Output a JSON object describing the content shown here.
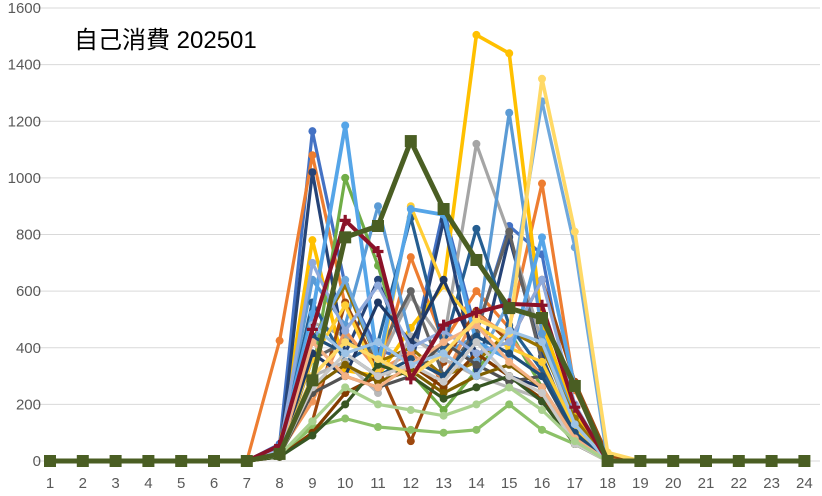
{
  "window": {
    "background": "#FFFFFF"
  },
  "chart_data": {
    "type": "line",
    "title": "自己消費 202501",
    "xlabel": "",
    "ylabel": "",
    "x": [
      1,
      2,
      3,
      4,
      5,
      6,
      7,
      8,
      9,
      10,
      11,
      12,
      13,
      14,
      15,
      16,
      17,
      18,
      19,
      20,
      21,
      22,
      23,
      24
    ],
    "y_ticks": [
      0,
      200,
      400,
      600,
      800,
      1000,
      1200,
      1400,
      1600
    ],
    "ylim": [
      0,
      1600
    ],
    "grid": "horizontal-only",
    "legend": "none",
    "grid_color": "#D9D9D9",
    "axis_label_color": "#595959",
    "title_color": "#000000",
    "series": [
      {
        "id": "s01",
        "color": "#4472C4",
        "marker": "circle",
        "width": 3.2,
        "values": [
          0,
          0,
          0,
          0,
          0,
          0,
          0,
          60,
          1165,
          620,
          390,
          360,
          890,
          450,
          830,
          730,
          120,
          0,
          0,
          0,
          0,
          0,
          0,
          0
        ]
      },
      {
        "id": "s02",
        "color": "#ED7D31",
        "marker": "circle",
        "width": 3.2,
        "values": [
          0,
          0,
          0,
          0,
          0,
          0,
          0,
          425,
          1080,
          550,
          300,
          720,
          420,
          600,
          470,
          980,
          250,
          15,
          0,
          0,
          0,
          0,
          0,
          0
        ]
      },
      {
        "id": "s03",
        "color": "#A5A5A5",
        "marker": "circle",
        "width": 3.2,
        "values": [
          0,
          0,
          0,
          0,
          0,
          0,
          0,
          30,
          490,
          440,
          340,
          580,
          420,
          1120,
          800,
          420,
          110,
          0,
          0,
          0,
          0,
          0,
          0,
          0
        ]
      },
      {
        "id": "s04",
        "color": "#FFC000",
        "marker": "circle",
        "width": 3.6,
        "values": [
          0,
          0,
          0,
          0,
          0,
          0,
          0,
          45,
          780,
          320,
          300,
          470,
          620,
          1505,
          1440,
          490,
          160,
          0,
          0,
          0,
          0,
          0,
          0,
          0
        ]
      },
      {
        "id": "s05",
        "color": "#5B9BD5",
        "marker": "circle",
        "width": 3.2,
        "values": [
          0,
          0,
          0,
          0,
          0,
          0,
          0,
          35,
          640,
          480,
          900,
          430,
          380,
          440,
          1230,
          450,
          150,
          0,
          0,
          0,
          0,
          0,
          0,
          0
        ]
      },
      {
        "id": "s06",
        "color": "#70AD47",
        "marker": "circle",
        "width": 3.2,
        "values": [
          0,
          0,
          0,
          0,
          0,
          0,
          0,
          25,
          300,
          1000,
          690,
          310,
          180,
          320,
          460,
          260,
          60,
          0,
          0,
          0,
          0,
          0,
          0,
          0
        ]
      },
      {
        "id": "s07",
        "color": "#264478",
        "marker": "circle",
        "width": 3.2,
        "values": [
          0,
          0,
          0,
          0,
          0,
          0,
          0,
          20,
          1020,
          380,
          640,
          330,
          850,
          300,
          790,
          370,
          90,
          0,
          0,
          0,
          0,
          0,
          0,
          0
        ]
      },
      {
        "id": "s08",
        "color": "#9E480E",
        "marker": "circle",
        "width": 3.2,
        "values": [
          0,
          0,
          0,
          0,
          0,
          0,
          0,
          15,
          140,
          560,
          330,
          70,
          350,
          530,
          420,
          640,
          280,
          20,
          0,
          0,
          0,
          0,
          0,
          0
        ]
      },
      {
        "id": "s09",
        "color": "#636363",
        "marker": "circle",
        "width": 3.2,
        "values": [
          0,
          0,
          0,
          0,
          0,
          0,
          0,
          20,
          360,
          420,
          380,
          600,
          300,
          460,
          810,
          350,
          80,
          0,
          0,
          0,
          0,
          0,
          0,
          0
        ]
      },
      {
        "id": "s10",
        "color": "#997300",
        "marker": "circle",
        "width": 3.2,
        "values": [
          0,
          0,
          0,
          0,
          0,
          0,
          0,
          25,
          430,
          620,
          350,
          400,
          300,
          350,
          460,
          400,
          150,
          0,
          0,
          0,
          0,
          0,
          0,
          0
        ]
      },
      {
        "id": "s11",
        "color": "#255E91",
        "marker": "circle",
        "width": 3.2,
        "values": [
          0,
          0,
          0,
          0,
          0,
          0,
          0,
          30,
          560,
          350,
          420,
          860,
          400,
          820,
          480,
          320,
          100,
          0,
          0,
          0,
          0,
          0,
          0,
          0
        ]
      },
      {
        "id": "s13",
        "color": "#6FA8DC",
        "marker": "circle",
        "width": 3.2,
        "values": [
          0,
          0,
          0,
          0,
          0,
          0,
          0,
          50,
          420,
          640,
          350,
          300,
          420,
          350,
          560,
          1270,
          755,
          0,
          0,
          0,
          0,
          0,
          0,
          0
        ]
      },
      {
        "id": "s14",
        "color": "#F1975A",
        "marker": "circle",
        "width": 3.2,
        "values": [
          0,
          0,
          0,
          0,
          0,
          0,
          0,
          30,
          210,
          460,
          320,
          380,
          290,
          520,
          440,
          300,
          90,
          0,
          0,
          0,
          0,
          0,
          0,
          0
        ]
      },
      {
        "id": "s15",
        "color": "#B7B7B7",
        "marker": "circle",
        "width": 3.2,
        "values": [
          0,
          0,
          0,
          0,
          0,
          0,
          0,
          25,
          300,
          350,
          240,
          440,
          360,
          300,
          260,
          220,
          70,
          0,
          0,
          0,
          0,
          0,
          0,
          0
        ]
      },
      {
        "id": "s16",
        "color": "#FFCD33",
        "marker": "circle",
        "width": 3.2,
        "values": [
          0,
          0,
          0,
          0,
          0,
          0,
          0,
          35,
          360,
          550,
          300,
          900,
          620,
          480,
          400,
          350,
          120,
          0,
          0,
          0,
          0,
          0,
          0,
          0
        ]
      },
      {
        "id": "s17",
        "color": "#55A5E8",
        "marker": "circle",
        "width": 3.8,
        "values": [
          0,
          0,
          0,
          0,
          0,
          0,
          0,
          45,
          520,
          1185,
          340,
          890,
          870,
          420,
          360,
          790,
          260,
          0,
          0,
          0,
          0,
          0,
          0,
          0
        ]
      },
      {
        "id": "s18",
        "color": "#8CC168",
        "marker": "circle",
        "width": 3.2,
        "values": [
          0,
          0,
          0,
          0,
          0,
          0,
          0,
          20,
          120,
          150,
          120,
          110,
          100,
          110,
          200,
          110,
          60,
          0,
          0,
          0,
          0,
          0,
          0,
          0
        ]
      },
      {
        "id": "s19",
        "color": "#1F3864",
        "marker": "circle",
        "width": 3.2,
        "values": [
          0,
          0,
          0,
          0,
          0,
          0,
          0,
          25,
          380,
          300,
          560,
          420,
          640,
          380,
          300,
          260,
          80,
          0,
          0,
          0,
          0,
          0,
          0,
          0
        ]
      },
      {
        "id": "s20",
        "color": "#833C00",
        "marker": "circle",
        "width": 3.2,
        "values": [
          0,
          0,
          0,
          0,
          0,
          0,
          0,
          15,
          100,
          240,
          300,
          340,
          260,
          380,
          300,
          220,
          60,
          0,
          0,
          0,
          0,
          0,
          0,
          0
        ]
      },
      {
        "id": "s21",
        "color": "#525252",
        "marker": "circle",
        "width": 3.2,
        "values": [
          0,
          0,
          0,
          0,
          0,
          0,
          0,
          20,
          240,
          300,
          260,
          300,
          420,
          340,
          280,
          300,
          90,
          0,
          0,
          0,
          0,
          0,
          0,
          0
        ]
      },
      {
        "id": "s22",
        "color": "#7F6000",
        "marker": "circle",
        "width": 3.2,
        "values": [
          0,
          0,
          0,
          0,
          0,
          0,
          0,
          20,
          260,
          340,
          280,
          320,
          240,
          300,
          340,
          260,
          70,
          0,
          0,
          0,
          0,
          0,
          0,
          0
        ]
      },
      {
        "id": "s23",
        "color": "#1F4E79",
        "marker": "circle",
        "width": 3.2,
        "values": [
          0,
          0,
          0,
          0,
          0,
          0,
          0,
          30,
          440,
          380,
          300,
          360,
          300,
          440,
          380,
          300,
          100,
          0,
          0,
          0,
          0,
          0,
          0,
          0
        ]
      },
      {
        "id": "s24",
        "color": "#375623",
        "marker": "circle",
        "width": 3.2,
        "values": [
          0,
          0,
          0,
          0,
          0,
          0,
          0,
          15,
          90,
          200,
          340,
          300,
          220,
          260,
          300,
          210,
          60,
          0,
          0,
          0,
          0,
          0,
          0,
          0
        ]
      },
      {
        "id": "s25",
        "color": "#8FAADC",
        "marker": "circle",
        "width": 3.2,
        "values": [
          0,
          0,
          0,
          0,
          0,
          0,
          0,
          40,
          700,
          460,
          620,
          400,
          460,
          380,
          420,
          640,
          200,
          0,
          0,
          0,
          0,
          0,
          0,
          0
        ]
      },
      {
        "id": "s27",
        "color": "#F4B183",
        "marker": "circle",
        "width": 3.2,
        "values": [
          0,
          0,
          0,
          0,
          0,
          0,
          0,
          25,
          420,
          300,
          260,
          340,
          420,
          480,
          350,
          260,
          80,
          0,
          0,
          0,
          0,
          0,
          0,
          0
        ]
      },
      {
        "id": "s28",
        "color": "#C9C9C9",
        "marker": "circle",
        "width": 3.2,
        "values": [
          0,
          0,
          0,
          0,
          0,
          0,
          0,
          20,
          260,
          380,
          300,
          340,
          280,
          420,
          300,
          240,
          60,
          0,
          0,
          0,
          0,
          0,
          0,
          0
        ]
      },
      {
        "id": "s29",
        "color": "#FFD966",
        "marker": "circle",
        "width": 3.6,
        "values": [
          0,
          0,
          0,
          0,
          0,
          0,
          0,
          30,
          300,
          420,
          360,
          300,
          380,
          500,
          450,
          1350,
          810,
          30,
          0,
          0,
          0,
          0,
          0,
          0
        ]
      },
      {
        "id": "s30",
        "color": "#9DC3E6",
        "marker": "circle",
        "width": 3.2,
        "values": [
          0,
          0,
          0,
          0,
          0,
          0,
          0,
          35,
          480,
          380,
          420,
          340,
          380,
          300,
          460,
          420,
          130,
          0,
          0,
          0,
          0,
          0,
          0,
          0
        ]
      },
      {
        "id": "s31",
        "color": "#A9D18E",
        "marker": "circle",
        "width": 3.2,
        "values": [
          0,
          0,
          0,
          0,
          0,
          0,
          0,
          20,
          140,
          260,
          200,
          180,
          160,
          200,
          260,
          180,
          70,
          0,
          0,
          0,
          0,
          0,
          0,
          0
        ]
      },
      {
        "id": "s12",
        "color": "#8B1228",
        "marker": "plus",
        "width": 4.0,
        "values": [
          0,
          0,
          0,
          0,
          0,
          0,
          0,
          55,
          465,
          850,
          740,
          290,
          480,
          525,
          555,
          550,
          190,
          0,
          0,
          0,
          0,
          0,
          0,
          0
        ]
      },
      {
        "id": "s26",
        "color": "#4A5E23",
        "marker": "square",
        "width": 5.0,
        "values": [
          0,
          0,
          0,
          0,
          0,
          0,
          0,
          25,
          285,
          790,
          830,
          1130,
          890,
          710,
          540,
          505,
          265,
          0,
          0,
          0,
          0,
          0,
          0,
          0
        ]
      }
    ]
  }
}
